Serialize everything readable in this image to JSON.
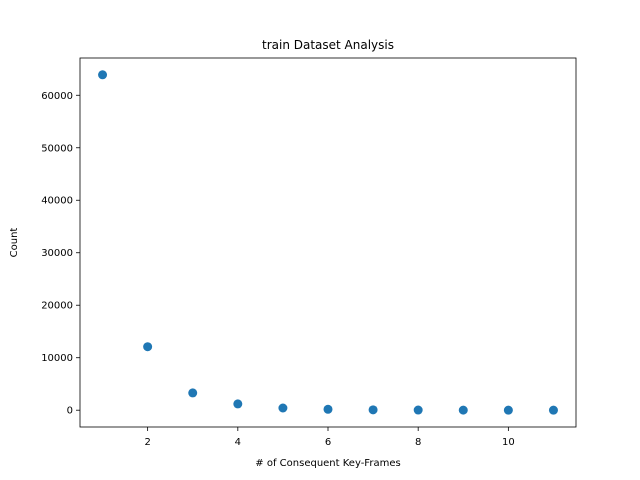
{
  "chart_data": {
    "type": "scatter",
    "title": "train Dataset Analysis",
    "xlabel": "# of Consequent Key-Frames",
    "ylabel": "Count",
    "x": [
      1,
      2,
      3,
      4,
      5,
      6,
      7,
      8,
      9,
      10,
      11
    ],
    "y": [
      63900,
      12100,
      3300,
      1200,
      420,
      170,
      70,
      30,
      15,
      8,
      5
    ],
    "xlim": [
      0.5,
      11.5
    ],
    "ylim": [
      -3200,
      67100
    ],
    "xticks": [
      2,
      4,
      6,
      8,
      10
    ],
    "yticks": [
      0,
      10000,
      20000,
      30000,
      40000,
      50000,
      60000
    ],
    "grid": false,
    "marker_color": "#1f77b4"
  }
}
